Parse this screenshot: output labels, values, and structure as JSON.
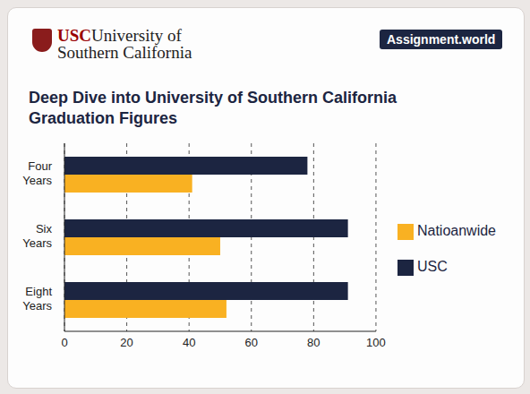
{
  "chart_data": {
    "type": "bar",
    "orientation": "horizontal",
    "title": "Deep Dive into University of Southern California Graduation Figures",
    "annotations": [
      "USC",
      "University of",
      "Southern California",
      "Assignment.world"
    ],
    "categories": [
      "Four Years",
      "Six Years",
      "Eight Years"
    ],
    "series": [
      {
        "name": "USC",
        "color": "#1c2541",
        "values": [
          78,
          91,
          91
        ]
      },
      {
        "name": "Natioanwide",
        "color": "#f9b122",
        "values": [
          41,
          50,
          52
        ]
      }
    ],
    "xlim": [
      0,
      100
    ],
    "xticks": [
      0,
      20,
      40,
      60,
      80,
      100
    ],
    "grid": true,
    "legend": "right"
  }
}
